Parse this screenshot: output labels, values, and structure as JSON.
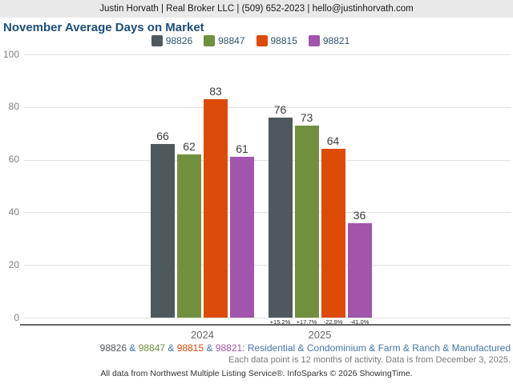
{
  "header": {
    "contact_line": "Justin Horvath | Real Broker LLC | (509) 652-2023 | hello@justinhorvath.com"
  },
  "title": "November Average Days on Market",
  "title_color": "#1d4e79",
  "chart_data": {
    "type": "bar",
    "title": "November Average Days on Market",
    "categories": [
      "2024",
      "2025"
    ],
    "series": [
      {
        "name": "98826",
        "color": "#4f585d",
        "values": [
          66,
          76
        ],
        "pct_change_2025": "+15.2%"
      },
      {
        "name": "98847",
        "color": "#71903e",
        "values": [
          62,
          73
        ],
        "pct_change_2025": "+17.7%"
      },
      {
        "name": "98815",
        "color": "#dd4b06",
        "values": [
          83,
          64
        ],
        "pct_change_2025": "-22.9%"
      },
      {
        "name": "98821",
        "color": "#a155ab",
        "values": [
          61,
          36
        ],
        "pct_change_2025": "-41.0%"
      }
    ],
    "ylim": [
      0,
      100
    ],
    "yticks": [
      0,
      20,
      40,
      60,
      80,
      100
    ],
    "grid": true,
    "legend_position": "top"
  },
  "footnotes": {
    "zip_note": {
      "zips": [
        {
          "label": "98826",
          "color": "#4f585d"
        },
        {
          "label": "98847",
          "color": "#71903e"
        },
        {
          "label": "98815",
          "color": "#dd4b06"
        },
        {
          "label": "98821",
          "color": "#a155ab"
        }
      ],
      "separator": " & ",
      "suffix": ": Residential & Condominium & Farm & Ranch & Manufactured",
      "link_color": "#4377a7"
    },
    "data_note": "Each data point is 12 months of activity. Data is from December 3, 2025.",
    "source_note": "All data from Northwest Multiple Listing Service®. InfoSparks © 2026 ShowingTime."
  }
}
